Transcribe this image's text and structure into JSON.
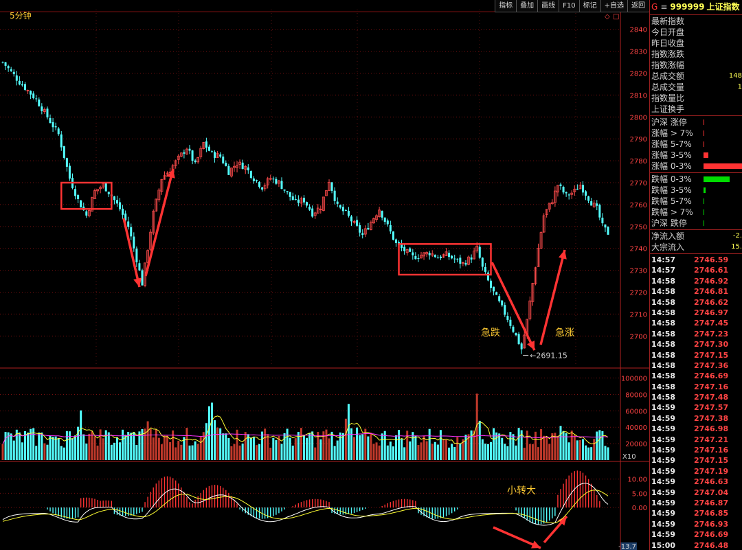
{
  "toolbar": [
    "指标",
    "叠加",
    "画线",
    "F10",
    "标记",
    "+自选",
    "返回"
  ],
  "period_label": "5分钟",
  "side": {
    "market_letter": "G",
    "menu_icon": "menu-icon",
    "code": "999999",
    "name": "上证指数",
    "quote_rows": [
      {
        "label": "最新指数",
        "value": ""
      },
      {
        "label": "今日开盘",
        "value": ""
      },
      {
        "label": "昨日收盘",
        "value": ""
      },
      {
        "label": "指数涨跌",
        "value": ""
      },
      {
        "label": "指数涨幅",
        "value": ""
      },
      {
        "label": "总成交额",
        "value": "148"
      },
      {
        "label": "总成交量",
        "value": "1"
      },
      {
        "label": "指数量比",
        "value": ""
      },
      {
        "label": "上证换手",
        "value": ""
      }
    ],
    "breadth_up": [
      {
        "label": "沪深 涨停",
        "level": 0.01,
        "color": "#ff3333"
      },
      {
        "label": "涨幅 > 7%",
        "level": 0.02,
        "color": "#ff3333"
      },
      {
        "label": "涨幅 5-7%",
        "level": 0.01,
        "color": "#ff3333"
      },
      {
        "label": "涨幅 3-5%",
        "level": 0.12,
        "color": "#ff3333"
      },
      {
        "label": "涨幅 0-3%",
        "level": 1.0,
        "color": "#ff3333"
      }
    ],
    "breadth_down": [
      {
        "label": "跌幅 0-3%",
        "level": 0.66,
        "color": "#00dd00"
      },
      {
        "label": "跌幅 3-5%",
        "level": 0.06,
        "color": "#00dd00"
      },
      {
        "label": "跌幅 5-7%",
        "level": 0.01,
        "color": "#00dd00"
      },
      {
        "label": "跌幅 > 7%",
        "level": 0.01,
        "color": "#00dd00"
      },
      {
        "label": "沪深 跌停",
        "level": 0.01,
        "color": "#00dd00"
      }
    ],
    "flows": [
      {
        "label": "净流入额",
        "value": "-2."
      },
      {
        "label": "大宗流入",
        "value": "15."
      }
    ],
    "ticks": [
      [
        "14:57",
        "2746.59"
      ],
      [
        "14:57",
        "2746.61"
      ],
      [
        "14:58",
        "2746.92"
      ],
      [
        "14:58",
        "2746.81"
      ],
      [
        "14:58",
        "2746.62"
      ],
      [
        "14:58",
        "2746.97"
      ],
      [
        "14:58",
        "2747.45"
      ],
      [
        "14:58",
        "2747.23"
      ],
      [
        "14:58",
        "2747.30"
      ],
      [
        "14:58",
        "2747.15"
      ],
      [
        "14:58",
        "2747.36"
      ],
      [
        "14:58",
        "2746.69"
      ],
      [
        "14:58",
        "2747.16"
      ],
      [
        "14:58",
        "2747.48"
      ],
      [
        "14:59",
        "2747.57"
      ],
      [
        "14:59",
        "2747.38"
      ],
      [
        "14:59",
        "2746.98"
      ],
      [
        "14:59",
        "2747.21"
      ],
      [
        "14:59",
        "2747.16"
      ],
      [
        "14:59",
        "2747.15"
      ],
      [
        "14:59",
        "2747.19"
      ],
      [
        "14:59",
        "2746.63"
      ],
      [
        "14:59",
        "2747.04"
      ],
      [
        "14:59",
        "2746.87"
      ],
      [
        "14:59",
        "2746.85"
      ],
      [
        "14:59",
        "2746.93"
      ],
      [
        "14:59",
        "2746.69"
      ],
      [
        "15:00",
        "2746.48"
      ]
    ]
  },
  "chart_data": {
    "type": "candlestick",
    "price_axis": {
      "ticks": [
        2700,
        2710,
        2720,
        2730,
        2740,
        2750,
        2760,
        2770,
        2780,
        2790,
        2800,
        2810,
        2820,
        2830,
        2840
      ],
      "ylim": [
        2686,
        2849
      ]
    },
    "price_path": [
      [
        0,
        2825
      ],
      [
        6,
        2816
      ],
      [
        12,
        2808
      ],
      [
        16,
        2800
      ],
      [
        20,
        2792
      ],
      [
        22,
        2782
      ],
      [
        24,
        2772
      ],
      [
        27,
        2762
      ],
      [
        30,
        2755
      ],
      [
        33,
        2766
      ],
      [
        36,
        2769
      ],
      [
        39,
        2764
      ],
      [
        42,
        2758
      ],
      [
        45,
        2750
      ],
      [
        48,
        2735
      ],
      [
        50,
        2724
      ],
      [
        52,
        2740
      ],
      [
        54,
        2756
      ],
      [
        57,
        2772
      ],
      [
        60,
        2776
      ],
      [
        63,
        2781
      ],
      [
        66,
        2786
      ],
      [
        69,
        2778
      ],
      [
        72,
        2788
      ],
      [
        75,
        2783
      ],
      [
        78,
        2782
      ],
      [
        81,
        2775
      ],
      [
        84,
        2779
      ],
      [
        87,
        2777
      ],
      [
        90,
        2772
      ],
      [
        93,
        2768
      ],
      [
        96,
        2772
      ],
      [
        99,
        2770
      ],
      [
        102,
        2765
      ],
      [
        105,
        2761
      ],
      [
        108,
        2762
      ],
      [
        111,
        2756
      ],
      [
        114,
        2759
      ],
      [
        117,
        2771
      ],
      [
        120,
        2759
      ],
      [
        123,
        2756
      ],
      [
        126,
        2751
      ],
      [
        129,
        2746
      ],
      [
        132,
        2752
      ],
      [
        135,
        2758
      ],
      [
        138,
        2750
      ],
      [
        141,
        2742
      ],
      [
        144,
        2739
      ],
      [
        147,
        2736
      ],
      [
        150,
        2737
      ],
      [
        153,
        2738
      ],
      [
        156,
        2736
      ],
      [
        159,
        2737
      ],
      [
        162,
        2735
      ],
      [
        165,
        2733
      ],
      [
        168,
        2736
      ],
      [
        170,
        2740
      ],
      [
        172,
        2731
      ],
      [
        175,
        2722
      ],
      [
        178,
        2715
      ],
      [
        181,
        2708
      ],
      [
        184,
        2700
      ],
      [
        186,
        2694
      ],
      [
        188,
        2707
      ],
      [
        190,
        2724
      ],
      [
        192,
        2740
      ],
      [
        194,
        2755
      ],
      [
        197,
        2762
      ],
      [
        199,
        2769
      ],
      [
        202,
        2764
      ],
      [
        205,
        2766
      ],
      [
        207,
        2769
      ],
      [
        209,
        2765
      ],
      [
        211,
        2761
      ],
      [
        213,
        2758
      ],
      [
        215,
        2750
      ],
      [
        217,
        2747
      ]
    ],
    "low_marker": {
      "label": "2691.15",
      "value": 2691.15,
      "index": 186
    },
    "volume_axis": {
      "ticks": [
        20000,
        40000,
        60000,
        80000,
        100000
      ],
      "ylim": [
        0,
        108000
      ]
    },
    "volume_spikes": [
      [
        28,
        62000
      ],
      [
        52,
        58000
      ],
      [
        75,
        100000
      ],
      [
        124,
        80000
      ],
      [
        170,
        82000
      ],
      [
        200,
        58000
      ]
    ],
    "volume_multiplier_label": "X10",
    "macd_axis": {
      "ticks": [
        10.0,
        5.0,
        0.0,
        -13.7
      ],
      "ylim": [
        -14,
        15.5
      ]
    },
    "macd_hist_pos_peaks": [
      [
        30,
        3.5
      ],
      [
        37,
        2.5
      ],
      [
        59,
        11
      ],
      [
        76,
        8
      ],
      [
        112,
        3
      ],
      [
        144,
        3
      ],
      [
        206,
        13
      ]
    ],
    "macd_hist_neg_peaks": [
      [
        24,
        -4
      ],
      [
        44,
        -3
      ],
      [
        93,
        -4
      ],
      [
        122,
        -2.5
      ],
      [
        155,
        -4
      ],
      [
        192,
        -6
      ]
    ],
    "box_annotations": [
      {
        "from": 21,
        "to": 39,
        "top": 2770,
        "bottom": 2758
      },
      {
        "from": 142,
        "to": 175,
        "top": 2742,
        "bottom": 2728
      }
    ],
    "labels": {
      "drop": "急跌",
      "rise": "急涨",
      "macd_note": "小转大"
    },
    "colors": {
      "up": "#ff4c4c",
      "down": "#54ffff",
      "ma1": "#ffffff",
      "ma2": "#ffff33",
      "ma3": "#ff33ff",
      "ma4": "#33ff33"
    }
  }
}
